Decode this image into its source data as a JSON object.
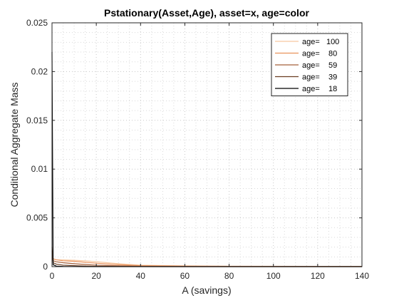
{
  "chart_data": {
    "type": "line",
    "title": "Pstationary(Asset,Age), asset=x, age=color",
    "xlabel": "A (savings)",
    "ylabel": "Conditional Aggregate Mass",
    "xlim": [
      0,
      140
    ],
    "ylim": [
      0,
      0.025
    ],
    "xticks": [
      0,
      20,
      40,
      60,
      80,
      100,
      120,
      140
    ],
    "xtick_labels": [
      "0",
      "20",
      "40",
      "60",
      "80",
      "100",
      "120",
      "140"
    ],
    "yticks": [
      0,
      0.005,
      0.01,
      0.015,
      0.02,
      0.025
    ],
    "ytick_labels": [
      "0",
      "0.005",
      "0.01",
      "0.015",
      "0.02",
      "0.025"
    ],
    "grid": "minor-dotted",
    "legend_position": "top-right",
    "series": [
      {
        "name": "age=   100",
        "color": "#f7c8a0",
        "x": [
          0,
          0.5,
          2,
          5,
          10,
          15,
          20,
          30,
          40,
          60,
          80,
          100,
          120,
          140
        ],
        "y": [
          0.0011,
          0.0008,
          0.0007,
          0.0007,
          0.00065,
          0.0006,
          0.0005,
          0.0003,
          0.00015,
          8e-05,
          5e-05,
          4e-05,
          3e-05,
          3e-05
        ]
      },
      {
        "name": "age=    80",
        "color": "#e9925c",
        "x": [
          0,
          0.5,
          2,
          5,
          10,
          15,
          20,
          30,
          40,
          60,
          80,
          100,
          120,
          140
        ],
        "y": [
          0.0013,
          0.0008,
          0.0007,
          0.0006,
          0.00055,
          0.00045,
          0.00035,
          0.0002,
          0.0001,
          5e-05,
          3e-05,
          2e-05,
          2e-05,
          2e-05
        ]
      },
      {
        "name": "age=    59",
        "color": "#a5603a",
        "x": [
          0,
          0.5,
          2,
          5,
          10,
          15,
          20,
          30,
          40,
          60,
          80,
          100,
          120,
          140
        ],
        "y": [
          0.0016,
          0.0006,
          0.0005,
          0.0004,
          0.0003,
          0.00022,
          0.00015,
          8e-05,
          4e-05,
          2e-05,
          1e-05,
          1e-05,
          1e-05,
          1e-05
        ]
      },
      {
        "name": "age=    39",
        "color": "#6a3d22",
        "x": [
          0,
          0.5,
          2,
          5,
          10,
          15,
          20,
          30,
          40,
          60,
          80,
          100,
          120,
          140
        ],
        "y": [
          0.002,
          0.0004,
          0.00025,
          0.00015,
          0.0001,
          6e-05,
          4e-05,
          2e-05,
          1e-05,
          0,
          0,
          0,
          0,
          0
        ]
      },
      {
        "name": "age=    18",
        "color": "#000000",
        "x": [
          0,
          0.5,
          2,
          5,
          10,
          15,
          20,
          30,
          40,
          60,
          80,
          100,
          120,
          140
        ],
        "y": [
          0.022,
          0.0002,
          5e-05,
          2e-05,
          1e-05,
          0,
          0,
          0,
          0,
          0,
          0,
          0,
          0,
          0
        ]
      }
    ]
  }
}
